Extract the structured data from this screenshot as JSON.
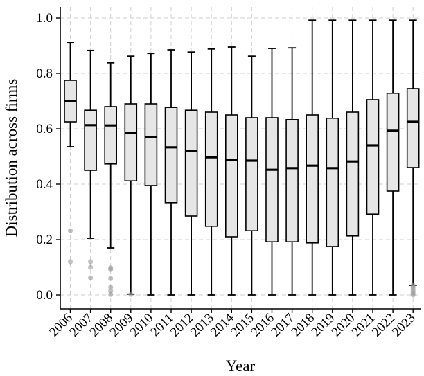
{
  "chart_data": {
    "type": "box",
    "xlabel": "Year",
    "ylabel": "Distribution across firms",
    "ylim": [
      -0.05,
      1.04
    ],
    "yticks": [
      "0.0",
      "0.2",
      "0.4",
      "0.6",
      "0.8",
      "1.0"
    ],
    "ytick_values": [
      0.0,
      0.2,
      0.4,
      0.6,
      0.8,
      1.0
    ],
    "grid": true,
    "categories": [
      "2006",
      "2007",
      "2008",
      "2009",
      "2010",
      "2011",
      "2012",
      "2013",
      "2014",
      "2015",
      "2016",
      "2017",
      "2018",
      "2019",
      "2020",
      "2021",
      "2022",
      "2023"
    ],
    "boxes": [
      {
        "min": 0.535,
        "q1": 0.625,
        "median": 0.7,
        "q3": 0.775,
        "max": 0.912,
        "outliers": [
          0.232,
          0.12
        ]
      },
      {
        "min": 0.205,
        "q1": 0.45,
        "median": 0.613,
        "q3": 0.667,
        "max": 0.883,
        "outliers": [
          0.12,
          0.1,
          0.062
        ]
      },
      {
        "min": 0.17,
        "q1": 0.473,
        "median": 0.612,
        "q3": 0.68,
        "max": 0.838,
        "outliers": [
          0.098,
          0.092,
          0.06,
          0.028,
          0.015,
          0.002
        ]
      },
      {
        "min": 0.003,
        "q1": 0.412,
        "median": 0.585,
        "q3": 0.69,
        "max": 0.862,
        "outliers": [
          0.002
        ]
      },
      {
        "min": 0.0,
        "q1": 0.395,
        "median": 0.57,
        "q3": 0.69,
        "max": 0.872,
        "outliers": []
      },
      {
        "min": 0.0,
        "q1": 0.333,
        "median": 0.533,
        "q3": 0.677,
        "max": 0.885,
        "outliers": []
      },
      {
        "min": 0.0,
        "q1": 0.285,
        "median": 0.52,
        "q3": 0.667,
        "max": 0.877,
        "outliers": []
      },
      {
        "min": 0.0,
        "q1": 0.248,
        "median": 0.497,
        "q3": 0.66,
        "max": 0.888,
        "outliers": []
      },
      {
        "min": 0.0,
        "q1": 0.21,
        "median": 0.488,
        "q3": 0.65,
        "max": 0.895,
        "outliers": []
      },
      {
        "min": 0.0,
        "q1": 0.232,
        "median": 0.485,
        "q3": 0.64,
        "max": 0.862,
        "outliers": []
      },
      {
        "min": 0.0,
        "q1": 0.192,
        "median": 0.452,
        "q3": 0.64,
        "max": 0.89,
        "outliers": []
      },
      {
        "min": 0.0,
        "q1": 0.192,
        "median": 0.458,
        "q3": 0.633,
        "max": 0.892,
        "outliers": []
      },
      {
        "min": 0.0,
        "q1": 0.188,
        "median": 0.467,
        "q3": 0.65,
        "max": 0.992,
        "outliers": []
      },
      {
        "min": 0.0,
        "q1": 0.175,
        "median": 0.458,
        "q3": 0.638,
        "max": 0.992,
        "outliers": []
      },
      {
        "min": 0.0,
        "q1": 0.213,
        "median": 0.482,
        "q3": 0.66,
        "max": 0.992,
        "outliers": []
      },
      {
        "min": 0.0,
        "q1": 0.292,
        "median": 0.54,
        "q3": 0.705,
        "max": 0.992,
        "outliers": []
      },
      {
        "min": 0.0,
        "q1": 0.375,
        "median": 0.593,
        "q3": 0.728,
        "max": 0.992,
        "outliers": []
      },
      {
        "min": 0.035,
        "q1": 0.46,
        "median": 0.625,
        "q3": 0.745,
        "max": 0.992,
        "outliers": [
          0.035,
          0.028,
          0.02,
          0.012,
          0.005,
          0.0
        ]
      }
    ]
  }
}
